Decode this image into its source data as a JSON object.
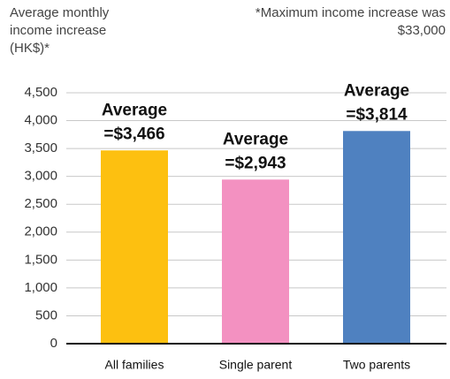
{
  "chart_data": {
    "type": "bar",
    "y_axis_label": "Average monthly income increase (HK$)*",
    "note": "*Maximum income increase was $33,000",
    "annotation": "Average",
    "categories": [
      "All families",
      "Single parent",
      "Two parents"
    ],
    "values": [
      3466,
      2943,
      3814
    ],
    "value_labels": [
      "=$3,466",
      "=$2,943",
      "=$3,814"
    ],
    "colors": [
      "#fdc010",
      "#f391c1",
      "#4f81c0"
    ],
    "ylim": [
      0,
      4500
    ],
    "yticks": [
      0,
      500,
      {
        "value": 1000,
        "label": "1,000"
      },
      {
        "value": 1500,
        "label": "1,500"
      },
      {
        "value": 2000,
        "label": "2,000"
      },
      {
        "value": 2500,
        "label": "2,500"
      },
      {
        "value": 3000,
        "label": "3,000"
      },
      {
        "value": 3500,
        "label": "3,500"
      },
      {
        "value": 4000,
        "label": "4,000"
      },
      {
        "value": 4500,
        "label": "4,500"
      }
    ],
    "grid": true
  }
}
